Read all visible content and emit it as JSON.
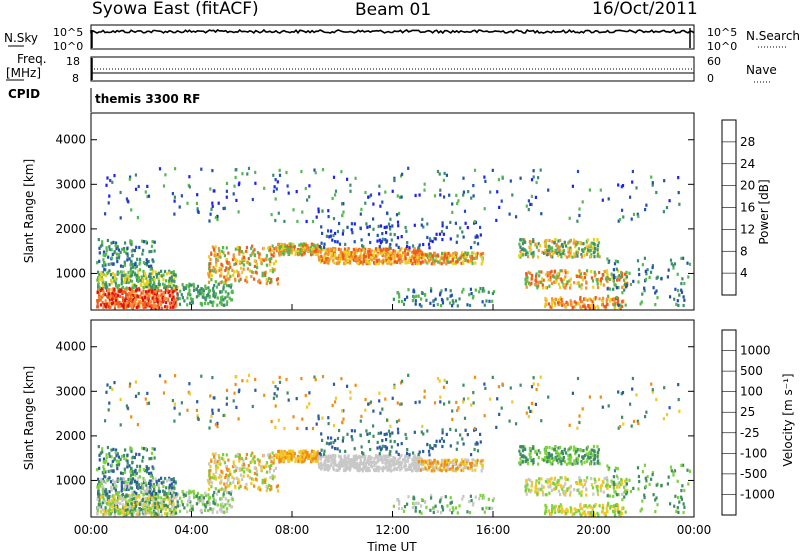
{
  "header": {
    "title_left": "Syowa East (fitACF)",
    "title_center": "Beam 01",
    "title_right": "16/Oct/2011"
  },
  "top_panels": {
    "nsky_label": "N.Sky",
    "nsky_ticks": [
      "10^5",
      "10^0"
    ],
    "nsearch_label": "N.Search",
    "nsearch_ticks": [
      "10^5",
      "10^0"
    ],
    "freq_label": "Freq.",
    "freq_unit": "[MHz]",
    "freq_ticks": [
      "18",
      "8"
    ],
    "nave_label": "Nave",
    "nave_ticks": [
      "60",
      "0"
    ],
    "cpid_label": "CPID",
    "cpid_value": "themis 3300 RF"
  },
  "chart_data": [
    {
      "type": "heatmap",
      "name": "power",
      "ylabel": "Slant Range [km]",
      "ylim": [
        180,
        4600
      ],
      "yticks": [
        "1000",
        "2000",
        "3000",
        "4000"
      ],
      "xlabel": "Time UT",
      "xlim": [
        0,
        24
      ],
      "xticks": [
        "00:00",
        "04:00",
        "08:00",
        "12:00",
        "16:00",
        "20:00",
        "00:00"
      ],
      "colorbar_label": "Power [dB]",
      "colorbar_ticks": [
        "4",
        "8",
        "12",
        "16",
        "20",
        "24",
        "28"
      ],
      "colorbar_colors": [
        "#1e22f0",
        "#2050b0",
        "#3c8c6e",
        "#55b850",
        "#e8d020",
        "#f09030",
        "#f05a1e",
        "#e01010"
      ]
    },
    {
      "type": "heatmap",
      "name": "velocity",
      "ylabel": "Slant Range [km]",
      "ylim": [
        180,
        4600
      ],
      "yticks": [
        "1000",
        "2000",
        "3000",
        "4000"
      ],
      "xlabel": "Time UT",
      "xlim": [
        0,
        24
      ],
      "xticks": [
        "00:00",
        "04:00",
        "08:00",
        "12:00",
        "16:00",
        "20:00",
        "00:00"
      ],
      "colorbar_label": "Velocity [m s⁻¹]",
      "colorbar_ticks": [
        "1000",
        "500",
        "100",
        "25",
        "-25",
        "-100",
        "-500",
        "-1000"
      ],
      "colorbar_colors": [
        "#1e28d8",
        "#2a5aa0",
        "#3c8c64",
        "#7cd23c",
        "#c8c8c8",
        "#f0c828",
        "#f08c14",
        "#f05a14",
        "#e01414"
      ]
    }
  ]
}
